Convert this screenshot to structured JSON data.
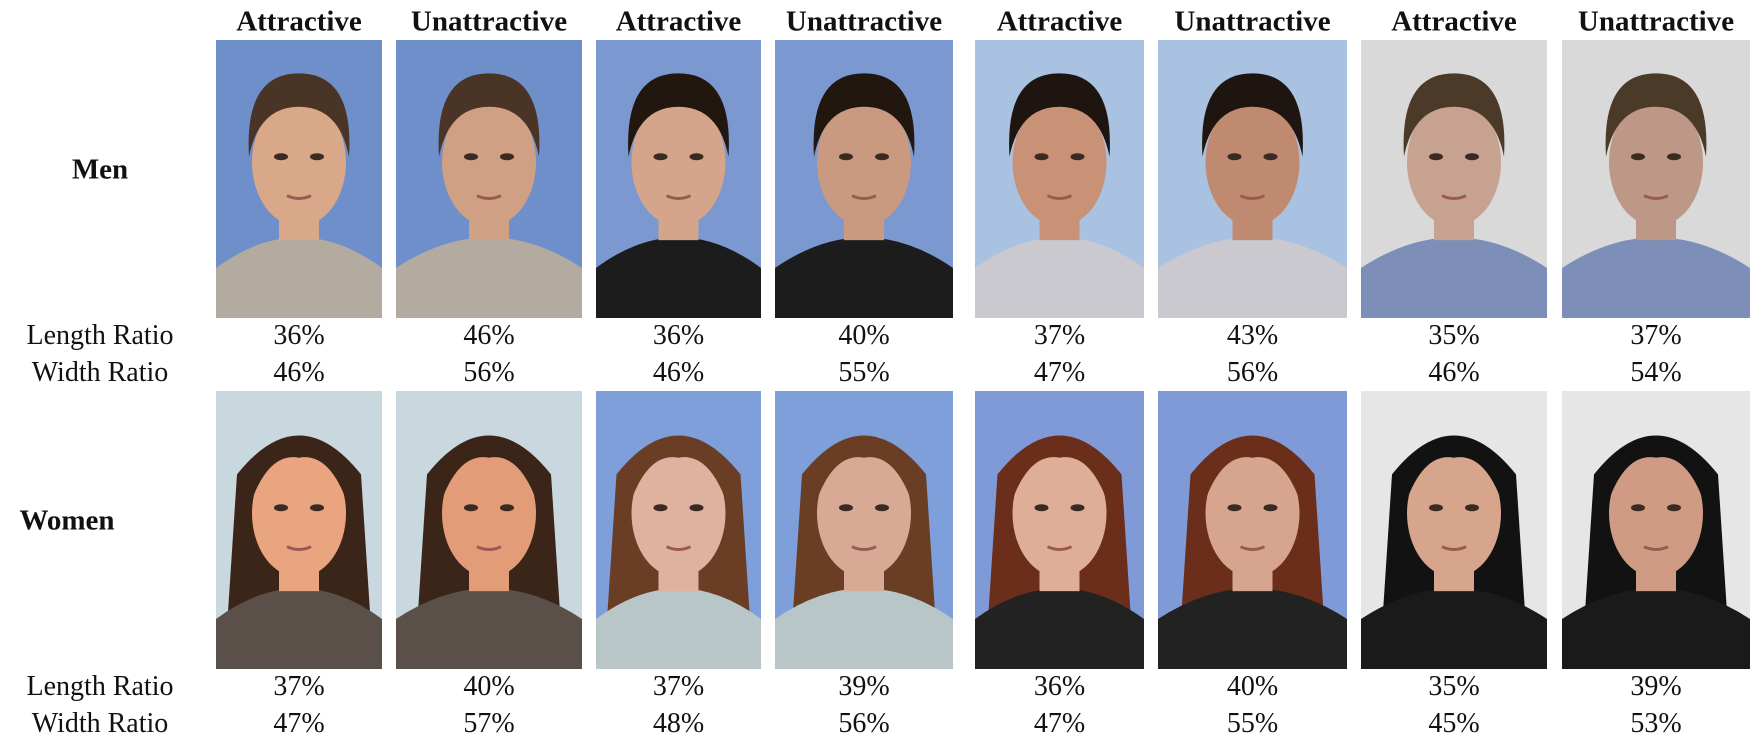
{
  "headers": [
    "Attractive",
    "Unattractive",
    "Attractive",
    "Unattractive",
    "Attractive",
    "Unattractive",
    "Attractive",
    "Unattractive"
  ],
  "rows": [
    {
      "label": "Men",
      "length_label": "Length Ratio",
      "width_label": "Width Ratio",
      "length": [
        "36%",
        "46%",
        "36%",
        "40%",
        "37%",
        "43%",
        "35%",
        "37%"
      ],
      "width": [
        "46%",
        "56%",
        "46%",
        "55%",
        "47%",
        "56%",
        "46%",
        "54%"
      ]
    },
    {
      "label": "Women",
      "length_label": "Length Ratio",
      "width_label": "Width Ratio",
      "length": [
        "37%",
        "40%",
        "37%",
        "39%",
        "36%",
        "40%",
        "35%",
        "39%"
      ],
      "width": [
        "47%",
        "57%",
        "48%",
        "56%",
        "47%",
        "55%",
        "45%",
        "53%"
      ]
    }
  ]
}
